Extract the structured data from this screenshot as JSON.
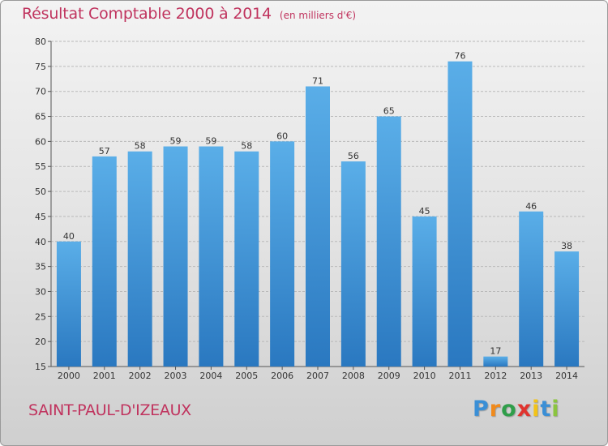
{
  "header": {
    "title": "Résultat Comptable 2000 à 2014",
    "subtitle": "(en milliers d'€)"
  },
  "footer": {
    "location": "SAINT-PAUL-D'IZEAUX",
    "brand": [
      "P",
      "r",
      "o",
      "x",
      "i",
      "t",
      "i"
    ],
    "brand_colors": [
      "#3a8fd6",
      "#f08a1c",
      "#2f9e4a",
      "#e0342f",
      "#f2c318",
      "#3a8fd6",
      "#8bc43f"
    ]
  },
  "colors": {
    "bar_light": "#5aaee8",
    "bar_dark": "#2a78c0",
    "grid": "#b9b9b9",
    "title": "#c0335e"
  },
  "chart_data": {
    "type": "bar",
    "title": "Résultat Comptable 2000 à 2014",
    "subtitle": "(en milliers d'€)",
    "xlabel": "",
    "ylabel": "",
    "categories": [
      "2000",
      "2001",
      "2002",
      "2003",
      "2004",
      "2005",
      "2006",
      "2007",
      "2008",
      "2009",
      "2010",
      "2011",
      "2012",
      "2013",
      "2014"
    ],
    "values": [
      40,
      57,
      58,
      59,
      59,
      58,
      60,
      71,
      56,
      65,
      45,
      76,
      17,
      46,
      38
    ],
    "ylim": [
      15,
      80
    ],
    "yticks": [
      15,
      20,
      25,
      30,
      35,
      40,
      45,
      50,
      55,
      60,
      65,
      70,
      75,
      80
    ],
    "grid": true,
    "legend": "none"
  }
}
